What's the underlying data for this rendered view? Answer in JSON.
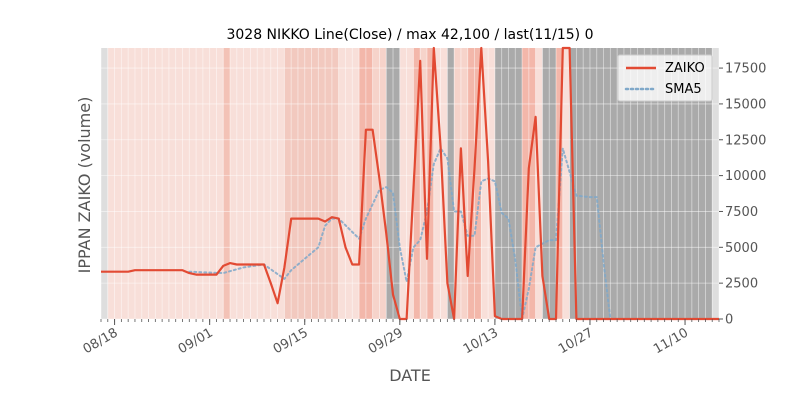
{
  "chart_data": {
    "type": "line",
    "title": "3028 NIKKO Line(Close) / max 42,100 / last(11/15) 0",
    "xlabel": "DATE",
    "ylabel": "IPPAN ZAIKO (volume)",
    "x_start": "2019-08-16",
    "x_end": "2019-11-15",
    "ylim": [
      0,
      18900
    ],
    "y_ticks": [
      0,
      2500,
      5000,
      7500,
      10000,
      12500,
      15000,
      17500
    ],
    "y_tick_labels": [
      "0",
      "2500",
      "5000",
      "7500",
      "10000",
      "12500",
      "15000",
      "17500"
    ],
    "x_ticks": [
      "2019-08-18",
      "2019-09-01",
      "2019-09-15",
      "2019-09-29",
      "2019-10-13",
      "2019-10-27",
      "2019-11-10"
    ],
    "x_tick_labels": [
      "08/18",
      "09/01",
      "09/15",
      "09/29",
      "10/13",
      "10/27",
      "11/10"
    ],
    "grid": true,
    "legend_position": "top-right",
    "series": [
      {
        "name": "ZAIKO",
        "color": "#e24a33",
        "style": "solid",
        "points": [
          [
            "2019-08-16",
            3300
          ],
          [
            "2019-08-19",
            3300
          ],
          [
            "2019-08-20",
            3300
          ],
          [
            "2019-08-21",
            3400
          ],
          [
            "2019-08-22",
            3400
          ],
          [
            "2019-08-23",
            3400
          ],
          [
            "2019-08-26",
            3400
          ],
          [
            "2019-08-27",
            3400
          ],
          [
            "2019-08-28",
            3400
          ],
          [
            "2019-08-29",
            3200
          ],
          [
            "2019-08-30",
            3100
          ],
          [
            "2019-09-02",
            3100
          ],
          [
            "2019-09-03",
            3700
          ],
          [
            "2019-09-04",
            3900
          ],
          [
            "2019-09-05",
            3800
          ],
          [
            "2019-09-06",
            3800
          ],
          [
            "2019-09-09",
            3800
          ],
          [
            "2019-09-10",
            2500
          ],
          [
            "2019-09-11",
            1100
          ],
          [
            "2019-09-12",
            3600
          ],
          [
            "2019-09-13",
            7000
          ],
          [
            "2019-09-17",
            7000
          ],
          [
            "2019-09-18",
            6800
          ],
          [
            "2019-09-19",
            7100
          ],
          [
            "2019-09-20",
            7000
          ],
          [
            "2019-09-21",
            5000
          ],
          [
            "2019-09-22",
            3800
          ],
          [
            "2019-09-23",
            3800
          ],
          [
            "2019-09-24",
            13200
          ],
          [
            "2019-09-25",
            13200
          ],
          [
            "2019-09-26",
            9800
          ],
          [
            "2019-09-27",
            6000
          ],
          [
            "2019-09-28",
            1700
          ],
          [
            "2019-09-29",
            0
          ],
          [
            "2019-09-30",
            0
          ],
          [
            "2019-10-02",
            18000
          ],
          [
            "2019-10-03",
            4200
          ],
          [
            "2019-10-04",
            18900
          ],
          [
            "2019-10-05",
            12000
          ],
          [
            "2019-10-06",
            2500
          ],
          [
            "2019-10-07",
            0
          ],
          [
            "2019-10-08",
            11900
          ],
          [
            "2019-10-09",
            3000
          ],
          [
            "2019-10-10",
            10500
          ],
          [
            "2019-10-11",
            18900
          ],
          [
            "2019-10-12",
            11000
          ],
          [
            "2019-10-13",
            200
          ],
          [
            "2019-10-14",
            0
          ],
          [
            "2019-10-15",
            0
          ],
          [
            "2019-10-16",
            0
          ],
          [
            "2019-10-17",
            0
          ],
          [
            "2019-10-18",
            10500
          ],
          [
            "2019-10-19",
            14100
          ],
          [
            "2019-10-20",
            3000
          ],
          [
            "2019-10-21",
            0
          ],
          [
            "2019-10-22",
            0
          ],
          [
            "2019-10-23",
            18900
          ],
          [
            "2019-10-24",
            18900
          ],
          [
            "2019-10-25",
            0
          ],
          [
            "2019-11-15",
            0
          ]
        ]
      },
      {
        "name": "SMA5",
        "color": "#7fa8c9",
        "style": "dotted",
        "points": [
          [
            "2019-08-29",
            3300
          ],
          [
            "2019-09-03",
            3200
          ],
          [
            "2019-09-06",
            3600
          ],
          [
            "2019-09-09",
            3800
          ],
          [
            "2019-09-12",
            2800
          ],
          [
            "2019-09-13",
            3400
          ],
          [
            "2019-09-17",
            5000
          ],
          [
            "2019-09-18",
            6500
          ],
          [
            "2019-09-19",
            7000
          ],
          [
            "2019-09-20",
            7000
          ],
          [
            "2019-09-23",
            5600
          ],
          [
            "2019-09-24",
            7000
          ],
          [
            "2019-09-25",
            8000
          ],
          [
            "2019-09-26",
            9000
          ],
          [
            "2019-09-27",
            9200
          ],
          [
            "2019-09-28",
            8800
          ],
          [
            "2019-09-29",
            5000
          ],
          [
            "2019-09-30",
            2600
          ],
          [
            "2019-10-01",
            5000
          ],
          [
            "2019-10-02",
            5500
          ],
          [
            "2019-10-03",
            7500
          ],
          [
            "2019-10-04",
            10800
          ],
          [
            "2019-10-05",
            11900
          ],
          [
            "2019-10-06",
            11200
          ],
          [
            "2019-10-07",
            7500
          ],
          [
            "2019-10-08",
            7500
          ],
          [
            "2019-10-09",
            5800
          ],
          [
            "2019-10-10",
            5800
          ],
          [
            "2019-10-11",
            9600
          ],
          [
            "2019-10-12",
            9800
          ],
          [
            "2019-10-13",
            9600
          ],
          [
            "2019-10-14",
            7400
          ],
          [
            "2019-10-15",
            7000
          ],
          [
            "2019-10-16",
            4100
          ],
          [
            "2019-10-17",
            0
          ],
          [
            "2019-10-18",
            2100
          ],
          [
            "2019-10-19",
            5000
          ],
          [
            "2019-10-21",
            5500
          ],
          [
            "2019-10-22",
            5500
          ],
          [
            "2019-10-23",
            11900
          ],
          [
            "2019-10-25",
            8600
          ],
          [
            "2019-10-27",
            8500
          ],
          [
            "2019-10-28",
            8500
          ],
          [
            "2019-10-29",
            4000
          ],
          [
            "2019-10-30",
            0
          ],
          [
            "2019-11-15",
            0
          ]
        ]
      }
    ],
    "background_bands": [
      {
        "from": "2019-08-16",
        "to": "2019-08-17",
        "color": "#dedede"
      },
      {
        "from": "2019-08-17",
        "to": "2019-09-03",
        "color": "#f8dfd9"
      },
      {
        "from": "2019-09-03",
        "to": "2019-09-04",
        "color": "#f3c2b6"
      },
      {
        "from": "2019-09-04",
        "to": "2019-09-12",
        "color": "#f8dfd9"
      },
      {
        "from": "2019-09-12",
        "to": "2019-09-20",
        "color": "#f2c9bf"
      },
      {
        "from": "2019-09-20",
        "to": "2019-09-23",
        "color": "#f8dfd9"
      },
      {
        "from": "2019-09-23",
        "to": "2019-09-25",
        "color": "#f3b7aa"
      },
      {
        "from": "2019-09-25",
        "to": "2019-09-27",
        "color": "#f6d3ca"
      },
      {
        "from": "2019-09-27",
        "to": "2019-09-29",
        "color": "#aaaaaa"
      },
      {
        "from": "2019-09-29",
        "to": "2019-10-01",
        "color": "#f8dfd9"
      },
      {
        "from": "2019-10-01",
        "to": "2019-10-02",
        "color": "#f3b7aa"
      },
      {
        "from": "2019-10-02",
        "to": "2019-10-03",
        "color": "#f6d3ca"
      },
      {
        "from": "2019-10-03",
        "to": "2019-10-04",
        "color": "#f3b7aa"
      },
      {
        "from": "2019-10-04",
        "to": "2019-10-06",
        "color": "#f8dfd9"
      },
      {
        "from": "2019-10-06",
        "to": "2019-10-07",
        "color": "#aaaaaa"
      },
      {
        "from": "2019-10-07",
        "to": "2019-10-09",
        "color": "#f6d3ca"
      },
      {
        "from": "2019-10-09",
        "to": "2019-10-11",
        "color": "#f3b7aa"
      },
      {
        "from": "2019-10-11",
        "to": "2019-10-13",
        "color": "#f8dfd9"
      },
      {
        "from": "2019-10-13",
        "to": "2019-10-17",
        "color": "#aaaaaa"
      },
      {
        "from": "2019-10-17",
        "to": "2019-10-19",
        "color": "#f3b7aa"
      },
      {
        "from": "2019-10-19",
        "to": "2019-10-20",
        "color": "#f8dfd9"
      },
      {
        "from": "2019-10-20",
        "to": "2019-10-22",
        "color": "#aaaaaa"
      },
      {
        "from": "2019-10-22",
        "to": "2019-10-23",
        "color": "#f3b7aa"
      },
      {
        "from": "2019-10-23",
        "to": "2019-10-24",
        "color": "#f8dfd9"
      },
      {
        "from": "2019-10-24",
        "to": "2019-11-14",
        "color": "#aaaaaa"
      },
      {
        "from": "2019-11-14",
        "to": "2019-11-15",
        "color": "#dedede"
      }
    ]
  }
}
